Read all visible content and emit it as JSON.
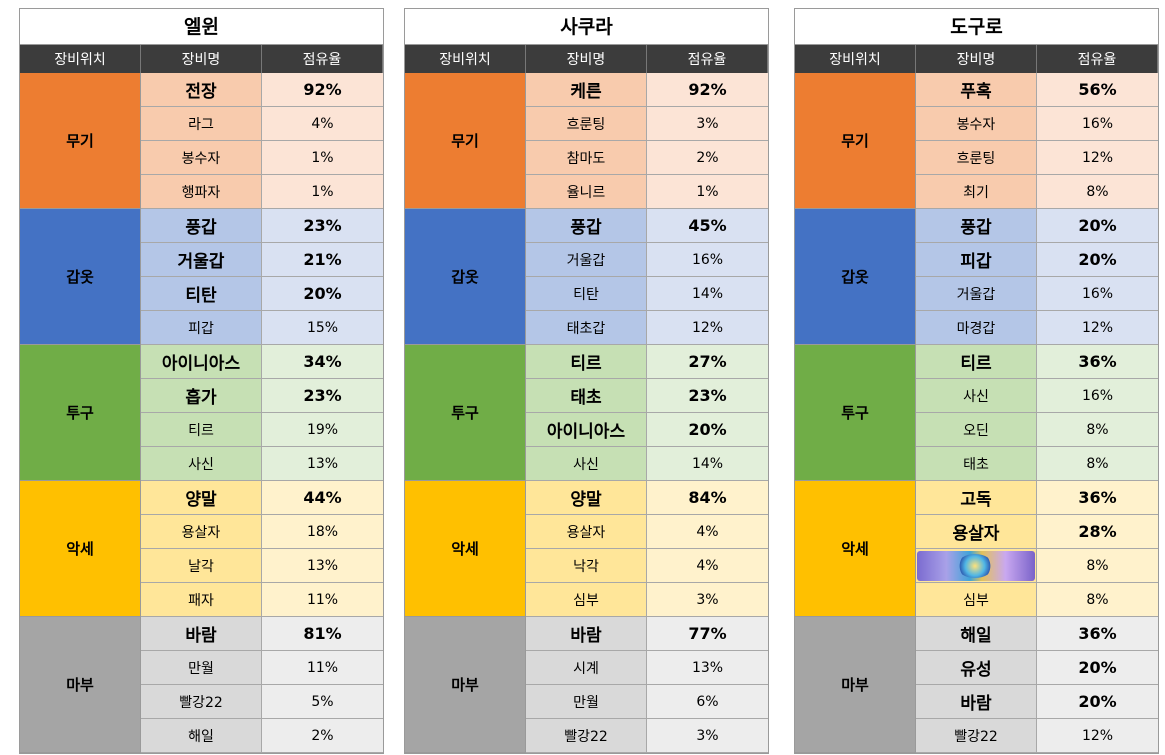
{
  "headers": {
    "slot": "장비위치",
    "item": "장비명",
    "rate": "점유율"
  },
  "panels": [
    {
      "title": "엘윈",
      "groups": [
        {
          "slot": "무기",
          "items": [
            {
              "name": "전장",
              "rate": "92%",
              "bold": true
            },
            {
              "name": "라그",
              "rate": "4%"
            },
            {
              "name": "봉수자",
              "rate": "1%"
            },
            {
              "name": "행파자",
              "rate": "1%"
            }
          ]
        },
        {
          "slot": "갑옷",
          "items": [
            {
              "name": "풍갑",
              "rate": "23%",
              "bold": true
            },
            {
              "name": "거울갑",
              "rate": "21%",
              "bold": true
            },
            {
              "name": "티탄",
              "rate": "20%",
              "bold": true
            },
            {
              "name": "피갑",
              "rate": "15%"
            }
          ]
        },
        {
          "slot": "투구",
          "items": [
            {
              "name": "아이니아스",
              "rate": "34%",
              "bold": true
            },
            {
              "name": "흡가",
              "rate": "23%",
              "bold": true
            },
            {
              "name": "티르",
              "rate": "19%"
            },
            {
              "name": "사신",
              "rate": "13%"
            }
          ]
        },
        {
          "slot": "악세",
          "items": [
            {
              "name": "양말",
              "rate": "44%",
              "bold": true
            },
            {
              "name": "용살자",
              "rate": "18%"
            },
            {
              "name": "날각",
              "rate": "13%"
            },
            {
              "name": "패자",
              "rate": "11%"
            }
          ]
        },
        {
          "slot": "마부",
          "items": [
            {
              "name": "바람",
              "rate": "81%",
              "bold": true
            },
            {
              "name": "만월",
              "rate": "11%"
            },
            {
              "name": "빨강22",
              "rate": "5%"
            },
            {
              "name": "해일",
              "rate": "2%"
            }
          ]
        }
      ]
    },
    {
      "title": "사쿠라",
      "groups": [
        {
          "slot": "무기",
          "items": [
            {
              "name": "케른",
              "rate": "92%",
              "bold": true
            },
            {
              "name": "흐룬팅",
              "rate": "3%"
            },
            {
              "name": "참마도",
              "rate": "2%"
            },
            {
              "name": "율니르",
              "rate": "1%"
            }
          ]
        },
        {
          "slot": "갑옷",
          "items": [
            {
              "name": "풍갑",
              "rate": "45%",
              "bold": true
            },
            {
              "name": "거울갑",
              "rate": "16%"
            },
            {
              "name": "티탄",
              "rate": "14%"
            },
            {
              "name": "태초갑",
              "rate": "12%"
            }
          ]
        },
        {
          "slot": "투구",
          "items": [
            {
              "name": "티르",
              "rate": "27%",
              "bold": true
            },
            {
              "name": "태초",
              "rate": "23%",
              "bold": true
            },
            {
              "name": "아이니아스",
              "rate": "20%",
              "bold": true
            },
            {
              "name": "사신",
              "rate": "14%"
            }
          ]
        },
        {
          "slot": "악세",
          "items": [
            {
              "name": "양말",
              "rate": "84%",
              "bold": true
            },
            {
              "name": "용살자",
              "rate": "4%"
            },
            {
              "name": "낙각",
              "rate": "4%"
            },
            {
              "name": "심부",
              "rate": "3%"
            }
          ]
        },
        {
          "slot": "마부",
          "items": [
            {
              "name": "바람",
              "rate": "77%",
              "bold": true
            },
            {
              "name": "시계",
              "rate": "13%"
            },
            {
              "name": "만월",
              "rate": "6%"
            },
            {
              "name": "빨강22",
              "rate": "3%"
            }
          ]
        }
      ]
    },
    {
      "title": "도구로",
      "groups": [
        {
          "slot": "무기",
          "items": [
            {
              "name": "푸혹",
              "rate": "56%",
              "bold": true
            },
            {
              "name": "봉수자",
              "rate": "16%"
            },
            {
              "name": "흐룬팅",
              "rate": "12%"
            },
            {
              "name": "최기",
              "rate": "8%"
            }
          ]
        },
        {
          "slot": "갑옷",
          "items": [
            {
              "name": "풍갑",
              "rate": "20%",
              "bold": true
            },
            {
              "name": "피갑",
              "rate": "20%",
              "bold": true
            },
            {
              "name": "거울갑",
              "rate": "16%"
            },
            {
              "name": "마경갑",
              "rate": "12%"
            }
          ]
        },
        {
          "slot": "투구",
          "items": [
            {
              "name": "티르",
              "rate": "36%",
              "bold": true
            },
            {
              "name": "사신",
              "rate": "16%"
            },
            {
              "name": "오딘",
              "rate": "8%"
            },
            {
              "name": "태초",
              "rate": "8%"
            }
          ]
        },
        {
          "slot": "악세",
          "items": [
            {
              "name": "고독",
              "rate": "36%",
              "bold": true
            },
            {
              "name": "용살자",
              "rate": "28%",
              "bold": true
            },
            {
              "name": "",
              "rate": "8%",
              "icon": "gem-item-image"
            },
            {
              "name": "심부",
              "rate": "8%"
            }
          ]
        },
        {
          "slot": "마부",
          "items": [
            {
              "name": "해일",
              "rate": "36%",
              "bold": true
            },
            {
              "name": "유성",
              "rate": "20%",
              "bold": true
            },
            {
              "name": "바람",
              "rate": "20%",
              "bold": true
            },
            {
              "name": "빨강22",
              "rate": "12%"
            }
          ]
        }
      ]
    }
  ]
}
